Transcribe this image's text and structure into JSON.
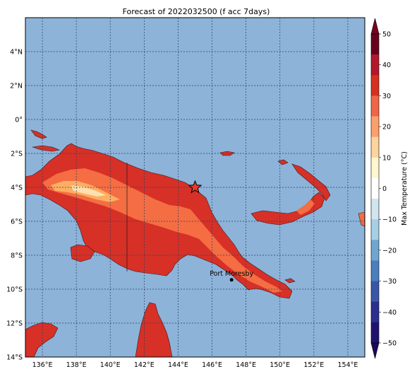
{
  "title": "Forecast of 2022032500 (f acc 7days)",
  "colors": {
    "ocean": "#8db3d9",
    "land_dark_red": "#d73027",
    "land_orange": "#f46d43",
    "land_light": "#fdae61",
    "land_pale": "#fee090",
    "grid": "#2a3f5f",
    "coast": "#3a1a1a"
  },
  "axes": {
    "lon_min": 135,
    "lon_max": 155,
    "lat_min": -14,
    "lat_max": 6,
    "x_ticks": [
      {
        "value": 136,
        "label": "136°E"
      },
      {
        "value": 138,
        "label": "138°E"
      },
      {
        "value": 140,
        "label": "140°E"
      },
      {
        "value": 142,
        "label": "142°E"
      },
      {
        "value": 144,
        "label": "144°E"
      },
      {
        "value": 146,
        "label": "146°E"
      },
      {
        "value": 148,
        "label": "148°E"
      },
      {
        "value": 150,
        "label": "150°E"
      },
      {
        "value": 152,
        "label": "152°E"
      },
      {
        "value": 154,
        "label": "154°E"
      }
    ],
    "y_ticks": [
      {
        "value": 4,
        "label": "4°N"
      },
      {
        "value": 2,
        "label": "2°N"
      },
      {
        "value": 0,
        "label": "0°"
      },
      {
        "value": -2,
        "label": "2°S"
      },
      {
        "value": -4,
        "label": "4°S"
      },
      {
        "value": -6,
        "label": "6°S"
      },
      {
        "value": -8,
        "label": "8°S"
      },
      {
        "value": -10,
        "label": "10°S"
      },
      {
        "value": -12,
        "label": "12°S"
      },
      {
        "value": -14,
        "label": "14°S"
      }
    ]
  },
  "markers": {
    "star": {
      "lon": 145.0,
      "lat": -4.0
    },
    "city": {
      "lon": 147.15,
      "lat": -9.45,
      "label": "Port Moresby"
    }
  },
  "colorbar": {
    "label": "Max Temperature (°C)",
    "levels": [
      {
        "value": 50,
        "label": "50"
      },
      {
        "value": 40,
        "label": "40"
      },
      {
        "value": 30,
        "label": "30"
      },
      {
        "value": 20,
        "label": "20"
      },
      {
        "value": 10,
        "label": "10"
      },
      {
        "value": 0,
        "label": "0"
      },
      {
        "value": -10,
        "label": "−10"
      },
      {
        "value": -20,
        "label": "−20"
      },
      {
        "value": -30,
        "label": "−30"
      },
      {
        "value": -40,
        "label": "−40"
      },
      {
        "value": -50,
        "label": "−50"
      }
    ],
    "bands": [
      "#67001f",
      "#b2182b",
      "#d6301f",
      "#ef6548",
      "#fc9f6a",
      "#fdd49e",
      "#fff7d0",
      "#ffffff",
      "#d1e5f0",
      "#a6cfe6",
      "#6fa6cf",
      "#4a7fbd",
      "#3a56a8",
      "#2b2f8f",
      "#1e1470"
    ],
    "over_color": "#7a0020",
    "under_color": "#1a0a5c"
  }
}
